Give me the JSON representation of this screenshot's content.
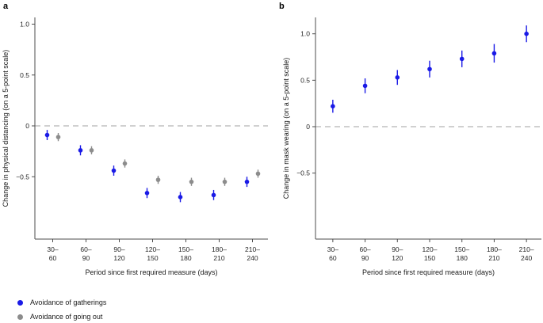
{
  "figure": {
    "background": "#ffffff",
    "legend": {
      "position": "bottom-left",
      "items": [
        {
          "label": "Avoidance of gatherings",
          "color": "#1a1ae6",
          "marker": "dot"
        },
        {
          "label": "Avoidance of going out",
          "color": "#8c8c8c",
          "marker": "dot"
        }
      ]
    },
    "colors": {
      "accent_blue": "#1a1ae6",
      "series_gray": "#8c8c8c",
      "axis": "#4d4d4d",
      "zero_line": "#b3b3b3",
      "text": "#262626"
    }
  },
  "chart_data": [
    {
      "type": "scatter",
      "panel_label": "a",
      "title": "",
      "xlabel": "Period since first required measure (days)",
      "ylabel": "Change in physical distancing (on a 5-point scale)",
      "categories": [
        "30–60",
        "60–90",
        "90–120",
        "120–150",
        "150–180",
        "180–210",
        "210–240"
      ],
      "category_tick_lines": [
        [
          "30–",
          "60"
        ],
        [
          "60–",
          "90"
        ],
        [
          "90–",
          "120"
        ],
        [
          "120–",
          "150"
        ],
        [
          "150–",
          "180"
        ],
        [
          "180–",
          "210"
        ],
        [
          "210–",
          "240"
        ]
      ],
      "ylim": [
        -1.12,
        1.06
      ],
      "yticks": [
        {
          "v": 1.0,
          "label": "1.0"
        },
        {
          "v": 0.5,
          "label": "0.5"
        },
        {
          "v": 0,
          "label": "0"
        },
        {
          "v": -0.5,
          "label": "−0.5"
        }
      ],
      "zero_line_dashed": true,
      "grid": false,
      "series": [
        {
          "name": "Avoidance of gatherings",
          "color": "#1a1ae6",
          "values": [
            -0.09,
            -0.24,
            -0.44,
            -0.66,
            -0.7,
            -0.68,
            -0.55
          ],
          "ci_low": [
            -0.14,
            -0.29,
            -0.49,
            -0.71,
            -0.75,
            -0.73,
            -0.6
          ],
          "ci_high": [
            -0.04,
            -0.19,
            -0.39,
            -0.61,
            -0.65,
            -0.63,
            -0.5
          ]
        },
        {
          "name": "Avoidance of going out",
          "color": "#8c8c8c",
          "values": [
            -0.11,
            -0.24,
            -0.37,
            -0.53,
            -0.55,
            -0.55,
            -0.47
          ],
          "ci_low": [
            -0.15,
            -0.28,
            -0.41,
            -0.57,
            -0.59,
            -0.59,
            -0.51
          ],
          "ci_high": [
            -0.07,
            -0.2,
            -0.33,
            -0.49,
            -0.51,
            -0.51,
            -0.43
          ]
        }
      ]
    },
    {
      "type": "scatter",
      "panel_label": "b",
      "title": "",
      "xlabel": "Period since first required measure (days)",
      "ylabel": "Change in mask wearing (on a 5-point scale)",
      "categories": [
        "30–60",
        "60–90",
        "90–120",
        "120–150",
        "150–180",
        "180–210",
        "210–240"
      ],
      "category_tick_lines": [
        [
          "30–",
          "60"
        ],
        [
          "60–",
          "90"
        ],
        [
          "90–",
          "120"
        ],
        [
          "120–",
          "150"
        ],
        [
          "150–",
          "180"
        ],
        [
          "180–",
          "210"
        ],
        [
          "210–",
          "240"
        ]
      ],
      "ylim": [
        -1.21,
        1.18
      ],
      "yticks": [
        {
          "v": 1.0,
          "label": "1.0"
        },
        {
          "v": 0.5,
          "label": "0.5"
        },
        {
          "v": 0,
          "label": "0"
        },
        {
          "v": -0.5,
          "label": "−0.5"
        }
      ],
      "zero_line_dashed": true,
      "grid": false,
      "series": [
        {
          "name": "Avoidance of gatherings",
          "color": "#1a1ae6",
          "values": [
            0.22,
            0.44,
            0.53,
            0.62,
            0.73,
            0.79,
            1.0
          ],
          "ci_low": [
            0.15,
            0.36,
            0.45,
            0.53,
            0.64,
            0.69,
            0.91
          ],
          "ci_high": [
            0.29,
            0.52,
            0.61,
            0.71,
            0.82,
            0.89,
            1.09
          ]
        }
      ]
    }
  ]
}
